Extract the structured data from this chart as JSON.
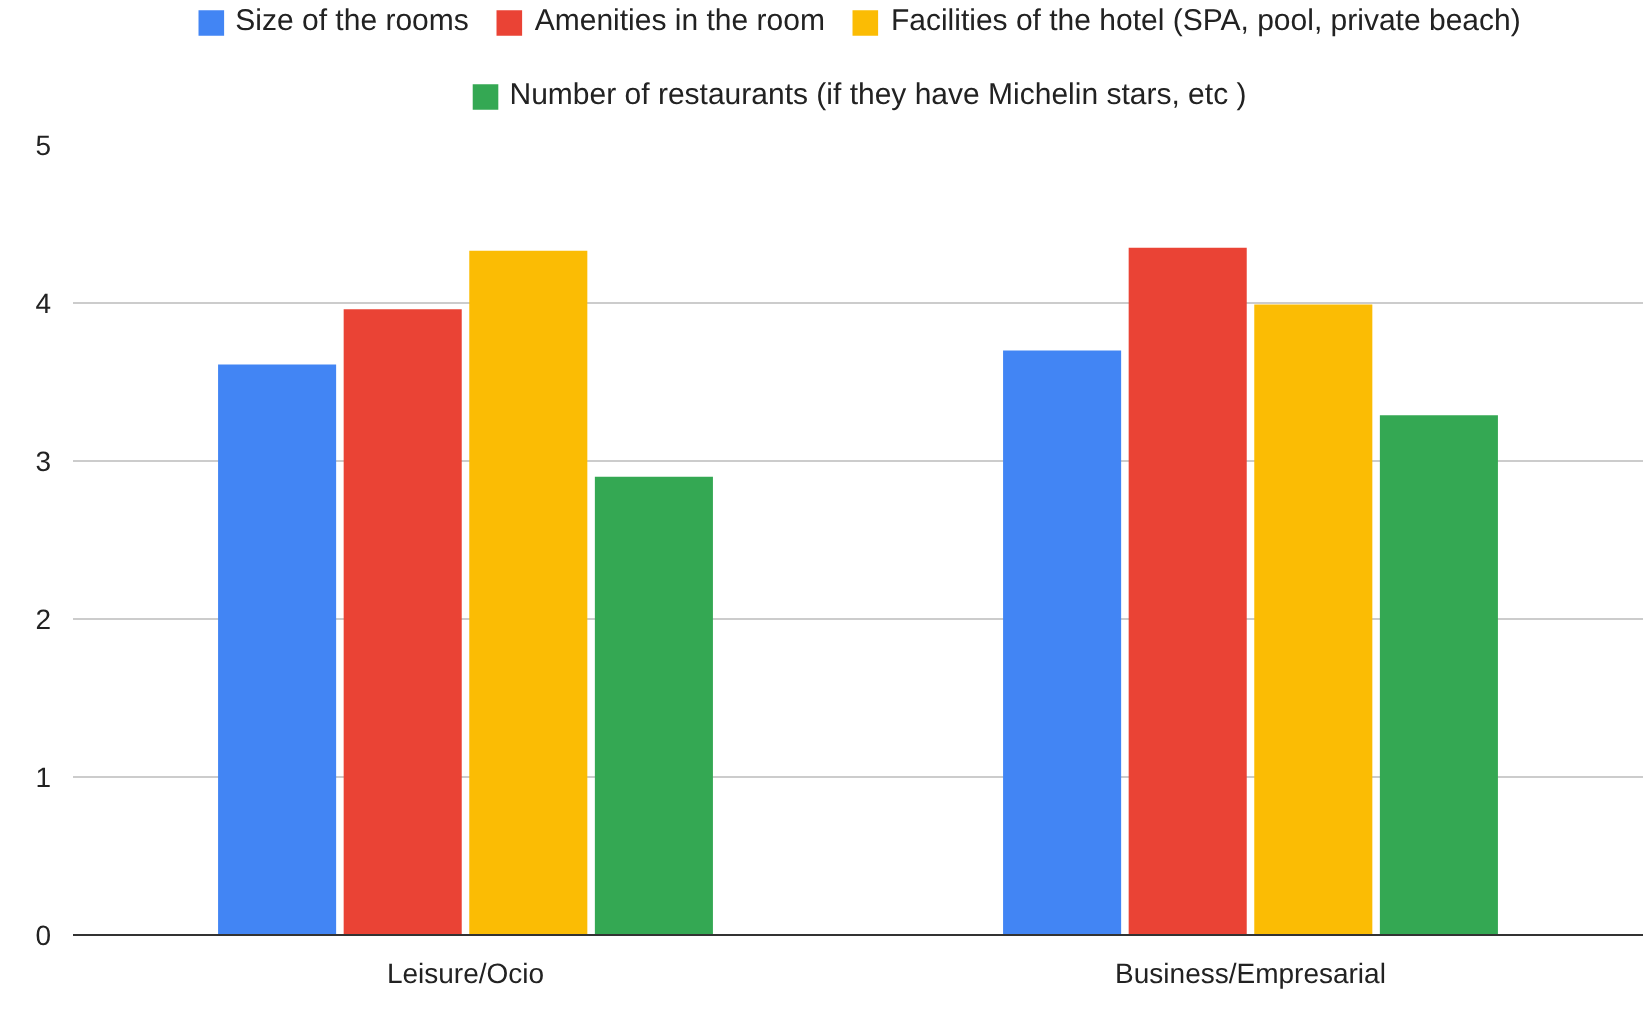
{
  "chart_data": {
    "type": "bar",
    "categories": [
      "Leisure/Ocio",
      "Business/Empresarial"
    ],
    "series": [
      {
        "name": "Size of the rooms",
        "color": "#4285f4",
        "values": [
          3.61,
          3.7
        ]
      },
      {
        "name": "Amenities in the room",
        "color": "#ea4335",
        "values": [
          3.96,
          4.35
        ]
      },
      {
        "name": "Facilities of the hotel (SPA, pool, private beach)",
        "color": "#fbbc04",
        "values": [
          4.33,
          3.99
        ]
      },
      {
        "name": "Number of restaurants (if they have Michelin stars, etc )",
        "color": "#34a853",
        "values": [
          2.9,
          3.29
        ]
      }
    ],
    "ylim": [
      0,
      5
    ],
    "yticks": [
      0,
      1,
      2,
      3,
      4,
      5
    ],
    "grid": "y",
    "legend": "top"
  }
}
